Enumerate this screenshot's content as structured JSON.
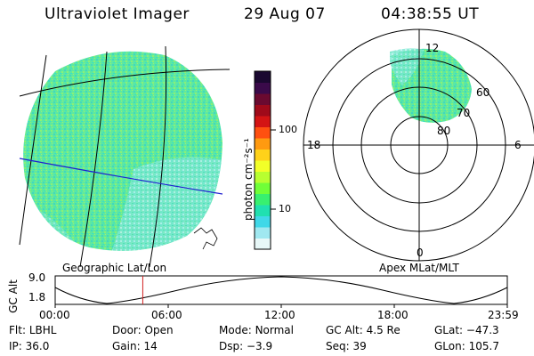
{
  "header": {
    "instrument": "Ultraviolet Imager",
    "date": "29 Aug 07",
    "time": "04:38:55 UT"
  },
  "colorbar": {
    "label": "photon cm⁻²s⁻¹",
    "ticks": [
      "100",
      "10"
    ],
    "colors": [
      "#1a0830",
      "#3a0a4a",
      "#6a0a30",
      "#a00a1a",
      "#d41414",
      "#ff5010",
      "#ff9a10",
      "#ffd21a",
      "#f2ff28",
      "#b8ff30",
      "#70ff38",
      "#38f070",
      "#20e0b0",
      "#40d8e8",
      "#a0e8f0",
      "#e8f8f8"
    ]
  },
  "left_map": {
    "label": "Geographic Lat/Lon",
    "fill_color": "#5ee8a0"
  },
  "right_map": {
    "label": "Apex MLat/MLT",
    "mlt_labels": [
      "12",
      "18",
      "6",
      "0"
    ],
    "lat_labels": [
      "60",
      "70",
      "80"
    ]
  },
  "altitude_plot": {
    "ylabel": "GC Alt",
    "yticks": [
      "9.0",
      "1.8"
    ],
    "xticks": [
      "00:00",
      "06:00",
      "12:00",
      "18:00",
      "23:59"
    ],
    "current_time_hours": 4.65
  },
  "status": {
    "row1": [
      {
        "label": "Flt:",
        "value": "LBHL"
      },
      {
        "label": "Door:",
        "value": "Open"
      },
      {
        "label": "Mode:",
        "value": "Normal"
      },
      {
        "label": "GC Alt:",
        "value": "4.5 Re"
      },
      {
        "label": "GLat:",
        "value": "−47.3"
      }
    ],
    "row2": [
      {
        "label": "IP:",
        "value": "36.0"
      },
      {
        "label": "Gain:",
        "value": "14"
      },
      {
        "label": "Dsp:",
        "value": "−3.9"
      },
      {
        "label": "Seq:",
        "value": "39"
      },
      {
        "label": "GLon:",
        "value": "105.7"
      }
    ]
  }
}
